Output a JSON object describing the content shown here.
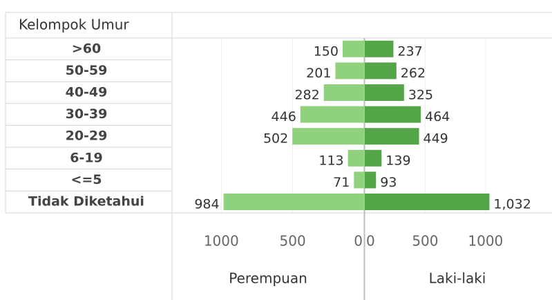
{
  "chart_data": {
    "type": "pyramid",
    "row_header": "Kelompok Umur",
    "categories": [
      ">60",
      "50-59",
      "40-49",
      "30-39",
      "20-29",
      "6-19",
      "<=5",
      "Tidak Diketahui"
    ],
    "series": [
      {
        "name": "Perempuan",
        "color": "#8fd17c",
        "side": "left",
        "values": [
          150,
          201,
          282,
          446,
          502,
          113,
          71,
          984
        ],
        "xlim": [
          0,
          1340
        ],
        "xticks": [
          1000,
          500,
          0
        ]
      },
      {
        "name": "Laki-laki",
        "color": "#53a548",
        "side": "right",
        "values": [
          237,
          262,
          325,
          464,
          449,
          139,
          93,
          1032
        ],
        "value_labels": [
          "237",
          "262",
          "325",
          "464",
          "449",
          "139",
          "93",
          "1,032"
        ],
        "xlim": [
          0,
          1550
        ],
        "xticks": [
          0,
          500,
          1000
        ]
      }
    ],
    "grid": true
  }
}
